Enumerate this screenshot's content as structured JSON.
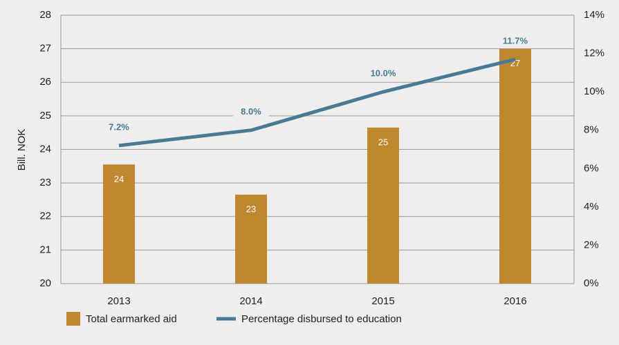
{
  "chart_data": {
    "type": "bar-line",
    "categories": [
      "2013",
      "2014",
      "2015",
      "2016"
    ],
    "series": [
      {
        "name": "Total earmarked aid",
        "type": "bar",
        "color": "#c0882e",
        "values": [
          23.55,
          22.65,
          24.65,
          27.0
        ],
        "value_labels": [
          "24",
          "23",
          "25",
          "27"
        ]
      },
      {
        "name": "Percentage disbursed to education",
        "type": "line",
        "axis": "y2",
        "color": "#4a7b94",
        "values": [
          7.2,
          8.0,
          10.0,
          11.7
        ],
        "value_labels": [
          "7.2%",
          "8.0%",
          "10.0%",
          "11.7%"
        ]
      }
    ],
    "ylabel": "Bill. NOK",
    "ylim": [
      20,
      28
    ],
    "yticks": [
      20,
      21,
      22,
      23,
      24,
      25,
      26,
      27,
      28
    ],
    "y2lim": [
      0,
      14
    ],
    "y2ticks": [
      {
        "value": 0,
        "label": "0%"
      },
      {
        "value": 2,
        "label": "2%"
      },
      {
        "value": 4,
        "label": "4%"
      },
      {
        "value": 6,
        "label": "6%"
      },
      {
        "value": 8,
        "label": "8%"
      },
      {
        "value": 10,
        "label": "10%"
      },
      {
        "value": 12,
        "label": "12%"
      },
      {
        "value": 14,
        "label": "14%"
      }
    ],
    "grid": true,
    "legend": "bottom"
  }
}
